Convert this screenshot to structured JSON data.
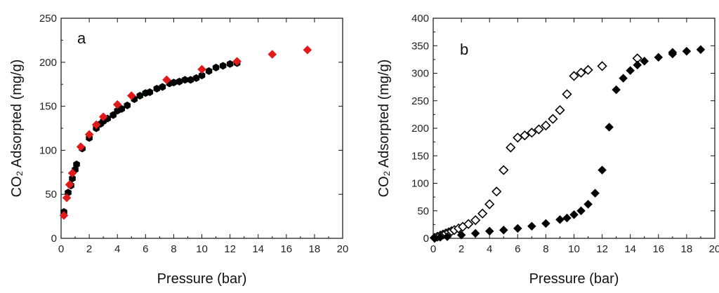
{
  "chart_data": [
    {
      "type": "scatter",
      "panel_label": "a",
      "xlabel": "Pressure (bar)",
      "ylabel": "CO₂ Adsorpted (mg/g)",
      "xlim": [
        0,
        20
      ],
      "ylim": [
        0,
        250
      ],
      "xticks": [
        "0",
        "2",
        "4",
        "6",
        "8",
        "10",
        "12",
        "14",
        "16",
        "18",
        "20"
      ],
      "yticks": [
        "0",
        "50",
        "100",
        "150",
        "200",
        "250"
      ],
      "grid": false,
      "legend": "none",
      "series": [
        {
          "marker": "hexagon",
          "color": "#000000",
          "points": [
            [
              0.2,
              30
            ],
            [
              0.5,
              52
            ],
            [
              0.7,
              60
            ],
            [
              0.8,
              68
            ],
            [
              1.0,
              78
            ],
            [
              1.1,
              84
            ],
            [
              1.5,
              102
            ],
            [
              2.0,
              114
            ],
            [
              2.5,
              125
            ],
            [
              2.8,
              130
            ],
            [
              3.0,
              133
            ],
            [
              3.3,
              136
            ],
            [
              3.7,
              140
            ],
            [
              4.0,
              145
            ],
            [
              4.3,
              147
            ],
            [
              4.7,
              151
            ],
            [
              5.2,
              158
            ],
            [
              5.6,
              162
            ],
            [
              6.0,
              165
            ],
            [
              6.3,
              166
            ],
            [
              6.8,
              170
            ],
            [
              7.2,
              172
            ],
            [
              7.7,
              176
            ],
            [
              8.0,
              177
            ],
            [
              8.4,
              178
            ],
            [
              8.8,
              180
            ],
            [
              9.2,
              180
            ],
            [
              9.6,
              182
            ],
            [
              10.0,
              185
            ],
            [
              10.5,
              190
            ],
            [
              11.0,
              194
            ],
            [
              11.5,
              196
            ],
            [
              12.0,
              198
            ],
            [
              12.5,
              199
            ]
          ]
        },
        {
          "marker": "diamond",
          "color": "#e0191b",
          "points": [
            [
              0.2,
              26
            ],
            [
              0.4,
              46
            ],
            [
              0.6,
              61
            ],
            [
              0.8,
              74
            ],
            [
              1.4,
              104
            ],
            [
              2.0,
              118
            ],
            [
              2.5,
              129
            ],
            [
              3.0,
              138
            ],
            [
              4.0,
              152
            ],
            [
              5.0,
              162
            ],
            [
              7.5,
              180
            ],
            [
              10.0,
              192
            ],
            [
              12.5,
              201
            ],
            [
              15.0,
              209
            ],
            [
              17.5,
              214
            ]
          ]
        }
      ]
    },
    {
      "type": "scatter",
      "panel_label": "b",
      "xlabel": "Pressure (bar)",
      "ylabel": "CO₂ Adsorpted (mg/g)",
      "xlim": [
        0,
        20
      ],
      "ylim": [
        0,
        400
      ],
      "xticks": [
        "0",
        "2",
        "4",
        "6",
        "8",
        "10",
        "12",
        "14",
        "16",
        "18",
        "20"
      ],
      "yticks": [
        "0",
        "50",
        "100",
        "150",
        "200",
        "250",
        "300",
        "350",
        "400"
      ],
      "grid": false,
      "legend": "none",
      "series": [
        {
          "marker": "diamond-open",
          "color": "#000000",
          "points": [
            [
              0.1,
              1
            ],
            [
              0.3,
              3
            ],
            [
              0.5,
              5
            ],
            [
              0.7,
              7
            ],
            [
              0.9,
              9
            ],
            [
              1.1,
              11
            ],
            [
              1.3,
              13
            ],
            [
              1.5,
              15
            ],
            [
              1.8,
              18
            ],
            [
              2.1,
              21
            ],
            [
              2.5,
              26
            ],
            [
              3.0,
              33
            ],
            [
              3.5,
              45
            ],
            [
              4.0,
              62
            ],
            [
              4.5,
              85
            ],
            [
              5.0,
              124
            ],
            [
              5.5,
              165
            ],
            [
              6.0,
              183
            ],
            [
              6.5,
              187
            ],
            [
              7.0,
              192
            ],
            [
              7.5,
              198
            ],
            [
              8.0,
              205
            ],
            [
              8.5,
              217
            ],
            [
              9.0,
              233
            ],
            [
              9.5,
              262
            ],
            [
              10.0,
              295
            ],
            [
              10.5,
              301
            ],
            [
              11.0,
              306
            ],
            [
              12.0,
              313
            ],
            [
              14.5,
              327
            ]
          ]
        },
        {
          "marker": "diamond",
          "color": "#000000",
          "points": [
            [
              0.1,
              0
            ],
            [
              0.5,
              2
            ],
            [
              1.0,
              3
            ],
            [
              2.0,
              6
            ],
            [
              3.0,
              9
            ],
            [
              4.0,
              13
            ],
            [
              5.0,
              15
            ],
            [
              6.0,
              18
            ],
            [
              7.0,
              22
            ],
            [
              8.0,
              27
            ],
            [
              9.0,
              34
            ],
            [
              9.5,
              37
            ],
            [
              10.0,
              43
            ],
            [
              10.5,
              50
            ],
            [
              11.0,
              62
            ],
            [
              11.5,
              82
            ],
            [
              12.0,
              124
            ],
            [
              12.5,
              202
            ],
            [
              13.0,
              270
            ],
            [
              13.5,
              291
            ],
            [
              14.0,
              305
            ],
            [
              14.5,
              315
            ],
            [
              15.0,
              322
            ],
            [
              16.0,
              329
            ],
            [
              17.0,
              335
            ],
            [
              17.0,
              338
            ],
            [
              18.0,
              340
            ],
            [
              19.0,
              343
            ]
          ]
        }
      ]
    }
  ]
}
